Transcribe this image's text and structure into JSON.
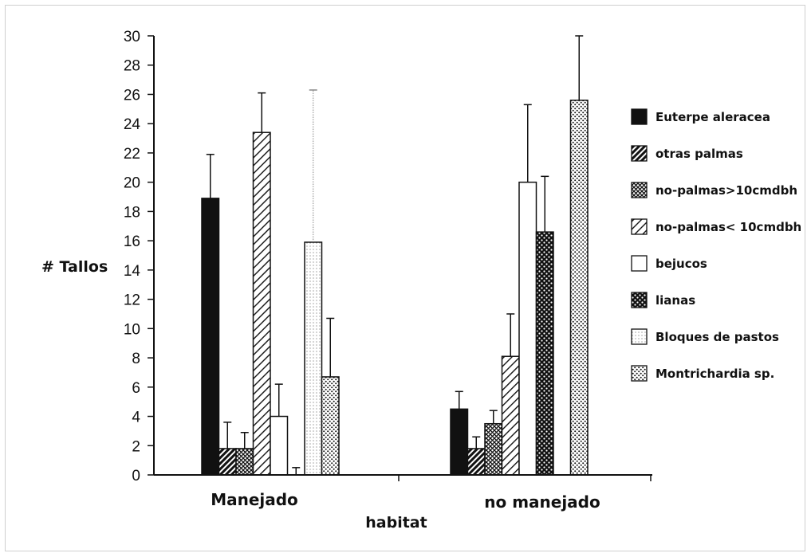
{
  "chart_data": {
    "type": "bar",
    "title": "",
    "xlabel": "habitat",
    "ylabel": "# Tallos",
    "ylim": [
      0,
      30
    ],
    "yticks": [
      0,
      2,
      4,
      6,
      8,
      10,
      12,
      14,
      16,
      18,
      20,
      22,
      24,
      26,
      28,
      30
    ],
    "categories": [
      "Manejado",
      "no manejado"
    ],
    "legend_position": "right",
    "grid": false,
    "series": [
      {
        "name": "Euterpe aleracea",
        "pattern": "solid",
        "values": [
          18.9,
          4.5
        ],
        "error": [
          3.0,
          1.2
        ]
      },
      {
        "name": "otras palmas",
        "pattern": "hatch-dense",
        "values": [
          1.8,
          1.8
        ],
        "error": [
          1.8,
          0.8
        ]
      },
      {
        "name": "no-palmas>10cmdbh",
        "pattern": "crosshatch",
        "values": [
          1.8,
          3.5
        ],
        "error": [
          1.1,
          0.9
        ]
      },
      {
        "name": "no-palmas< 10cmdbh",
        "pattern": "hatch-light",
        "values": [
          23.4,
          8.1
        ],
        "error": [
          2.7,
          2.9
        ]
      },
      {
        "name": "bejucos",
        "pattern": "white",
        "values": [
          4.0,
          20.0
        ],
        "error": [
          2.2,
          5.3
        ]
      },
      {
        "name": "lianas",
        "pattern": "dark-dots",
        "values": [
          0,
          16.6
        ],
        "error": [
          0.5,
          3.8
        ]
      },
      {
        "name": "Bloques de pastos",
        "pattern": "light-dots",
        "values": [
          15.9,
          0
        ],
        "error": [
          10.4,
          0
        ]
      },
      {
        "name": "Montrichardia sp.",
        "pattern": "dots",
        "values": [
          6.7,
          25.6
        ],
        "error": [
          4.0,
          4.4
        ]
      }
    ]
  }
}
